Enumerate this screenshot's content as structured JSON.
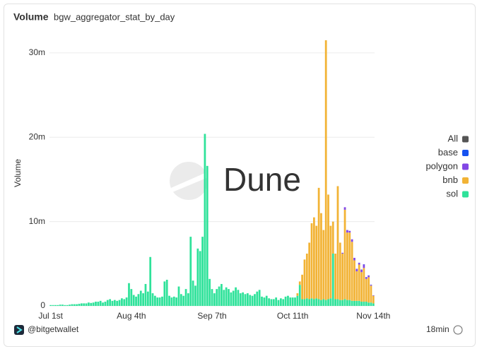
{
  "chart_data": {
    "type": "bar",
    "stacked": true,
    "title": "Volume",
    "subtitle": "bgw_aggregator_stat_by_day",
    "y_label": "Volume",
    "watermark": "Dune",
    "footer": "@bitgetwallet",
    "updated": "18min",
    "legend_extra": {
      "name": "All",
      "color": "#555555"
    },
    "categories": [
      "Jul 1st",
      null,
      null,
      null,
      null,
      null,
      null,
      null,
      null,
      null,
      null,
      null,
      null,
      null,
      null,
      null,
      null,
      null,
      null,
      null,
      null,
      null,
      null,
      null,
      null,
      null,
      null,
      null,
      null,
      null,
      null,
      null,
      null,
      null,
      "Aug 4th",
      null,
      null,
      null,
      null,
      null,
      null,
      null,
      null,
      null,
      null,
      null,
      null,
      null,
      null,
      null,
      null,
      null,
      null,
      null,
      null,
      null,
      null,
      null,
      null,
      null,
      null,
      null,
      null,
      null,
      null,
      null,
      null,
      null,
      "Sep 7th",
      null,
      null,
      null,
      null,
      null,
      null,
      null,
      null,
      null,
      null,
      null,
      null,
      null,
      null,
      null,
      null,
      null,
      null,
      null,
      null,
      null,
      null,
      null,
      null,
      null,
      null,
      null,
      null,
      null,
      null,
      null,
      null,
      null,
      "Oct 11th",
      null,
      null,
      null,
      null,
      null,
      null,
      null,
      null,
      null,
      null,
      null,
      null,
      null,
      null,
      null,
      null,
      null,
      null,
      null,
      null,
      null,
      null,
      null,
      null,
      null,
      null,
      null,
      null,
      null,
      null,
      null,
      null,
      null,
      "Nov 14th"
    ],
    "series": [
      {
        "name": "sol",
        "color": "#2fe29a",
        "values": [
          0.1,
          0.1,
          0.1,
          0.1,
          0.15,
          0.15,
          0.1,
          0.1,
          0.15,
          0.2,
          0.2,
          0.2,
          0.25,
          0.3,
          0.3,
          0.3,
          0.4,
          0.35,
          0.4,
          0.5,
          0.5,
          0.6,
          0.4,
          0.5,
          0.7,
          0.8,
          0.6,
          0.7,
          0.6,
          0.7,
          0.9,
          0.8,
          1.0,
          2.7,
          2.0,
          1.3,
          1.1,
          1.4,
          1.8,
          1.5,
          2.6,
          1.7,
          5.8,
          1.5,
          1.2,
          1.0,
          1.0,
          1.1,
          2.9,
          3.1,
          1.2,
          1.0,
          1.1,
          1.0,
          2.3,
          1.4,
          1.2,
          2.0,
          1.5,
          8.2,
          3.0,
          2.4,
          6.8,
          6.5,
          8.2,
          20.4,
          16.6,
          3.2,
          2.0,
          1.5,
          2.0,
          2.3,
          2.6,
          1.9,
          2.2,
          2.0,
          1.6,
          1.8,
          2.2,
          1.9,
          1.5,
          1.6,
          1.4,
          1.5,
          1.3,
          1.2,
          1.4,
          1.7,
          1.9,
          1.1,
          1.0,
          1.2,
          0.9,
          0.8,
          0.8,
          1.0,
          0.7,
          0.9,
          0.8,
          1.1,
          1.2,
          1.0,
          1.0,
          1.0,
          1.2,
          2.5,
          0.8,
          0.8,
          0.9,
          0.8,
          0.9,
          0.8,
          0.9,
          0.8,
          0.7,
          0.8,
          0.7,
          0.8,
          0.9,
          6.2,
          0.8,
          0.8,
          0.7,
          0.7,
          0.8,
          0.7,
          0.7,
          0.6,
          0.6,
          0.6,
          0.6,
          0.5,
          0.5,
          0.5,
          0.4,
          0.4,
          0.3
        ]
      },
      {
        "name": "bnb",
        "color": "#f2b335",
        "values": [
          0,
          0,
          0,
          0,
          0,
          0,
          0,
          0,
          0,
          0,
          0,
          0,
          0,
          0,
          0,
          0,
          0,
          0,
          0,
          0,
          0,
          0,
          0,
          0,
          0,
          0,
          0,
          0,
          0,
          0,
          0,
          0,
          0,
          0,
          0,
          0,
          0,
          0,
          0,
          0,
          0,
          0,
          0,
          0,
          0,
          0,
          0,
          0,
          0,
          0,
          0,
          0,
          0,
          0,
          0,
          0,
          0,
          0,
          0,
          0,
          0,
          0,
          0,
          0,
          0,
          0,
          0,
          0,
          0,
          0,
          0,
          0,
          0,
          0,
          0,
          0,
          0,
          0,
          0,
          0,
          0,
          0,
          0,
          0,
          0,
          0,
          0,
          0,
          0,
          0,
          0,
          0,
          0,
          0,
          0,
          0,
          0,
          0,
          0,
          0,
          0,
          0,
          0,
          0,
          0.3,
          0.4,
          2.9,
          4.7,
          5.3,
          6.7,
          8.9,
          9.7,
          8.6,
          13.2,
          10.3,
          8.2,
          30.8,
          12.4,
          8.6,
          3.8,
          5.4,
          13.4,
          6.8,
          5.5,
          10.6,
          8.0,
          8.0,
          7.0,
          4.8,
          3.5,
          4.3,
          3.5,
          4.0,
          2.7,
          3.0,
          2.0,
          0.9
        ]
      },
      {
        "name": "polygon",
        "color": "#8247e5",
        "values": [
          0,
          0,
          0,
          0,
          0,
          0,
          0,
          0,
          0,
          0,
          0,
          0,
          0,
          0,
          0,
          0,
          0,
          0,
          0,
          0,
          0,
          0,
          0,
          0,
          0,
          0,
          0,
          0,
          0,
          0,
          0,
          0,
          0,
          0,
          0,
          0,
          0,
          0,
          0,
          0,
          0,
          0,
          0,
          0,
          0,
          0,
          0,
          0,
          0,
          0,
          0,
          0,
          0,
          0,
          0,
          0,
          0,
          0,
          0,
          0,
          0,
          0,
          0,
          0,
          0,
          0,
          0,
          0,
          0,
          0,
          0,
          0,
          0,
          0,
          0,
          0,
          0,
          0,
          0,
          0,
          0,
          0,
          0,
          0,
          0,
          0,
          0,
          0,
          0,
          0,
          0,
          0,
          0,
          0,
          0,
          0,
          0,
          0,
          0,
          0,
          0,
          0,
          0,
          0,
          0,
          0,
          0,
          0,
          0,
          0,
          0,
          0,
          0,
          0,
          0,
          0,
          0,
          0,
          0,
          0,
          0,
          0,
          0,
          0.1,
          0.3,
          0.3,
          0.2,
          0.3,
          0.3,
          0.3,
          0.2,
          0.3,
          0.4,
          0.2,
          0.2,
          0.1,
          0.05
        ]
      },
      {
        "name": "base",
        "color": "#1652f0",
        "values": [
          0,
          0,
          0,
          0,
          0,
          0,
          0,
          0,
          0,
          0,
          0,
          0,
          0,
          0,
          0,
          0,
          0,
          0,
          0,
          0,
          0,
          0,
          0,
          0,
          0,
          0,
          0,
          0,
          0,
          0,
          0,
          0,
          0,
          0,
          0,
          0,
          0,
          0,
          0,
          0,
          0,
          0,
          0,
          0,
          0,
          0,
          0,
          0,
          0,
          0,
          0,
          0,
          0,
          0,
          0,
          0,
          0,
          0,
          0,
          0,
          0,
          0,
          0,
          0,
          0,
          0,
          0,
          0,
          0,
          0,
          0,
          0,
          0,
          0,
          0,
          0,
          0,
          0,
          0,
          0,
          0,
          0,
          0,
          0,
          0,
          0,
          0,
          0,
          0,
          0,
          0,
          0,
          0,
          0,
          0,
          0,
          0,
          0,
          0,
          0,
          0,
          0,
          0,
          0,
          0,
          0,
          0,
          0,
          0,
          0,
          0,
          0,
          0,
          0,
          0,
          0,
          0,
          0,
          0,
          0,
          0,
          0,
          0,
          0,
          0,
          0,
          0,
          0,
          0,
          0,
          0.02,
          0.02,
          0.03,
          0.02,
          0.02,
          0.02,
          0.01
        ]
      }
    ],
    "ylim": [
      0,
      32
    ],
    "yticks": [
      {
        "value": 0,
        "label": "0"
      },
      {
        "value": 10,
        "label": "10m"
      },
      {
        "value": 20,
        "label": "20m"
      },
      {
        "value": 30,
        "label": "30m"
      }
    ],
    "grid": true
  }
}
